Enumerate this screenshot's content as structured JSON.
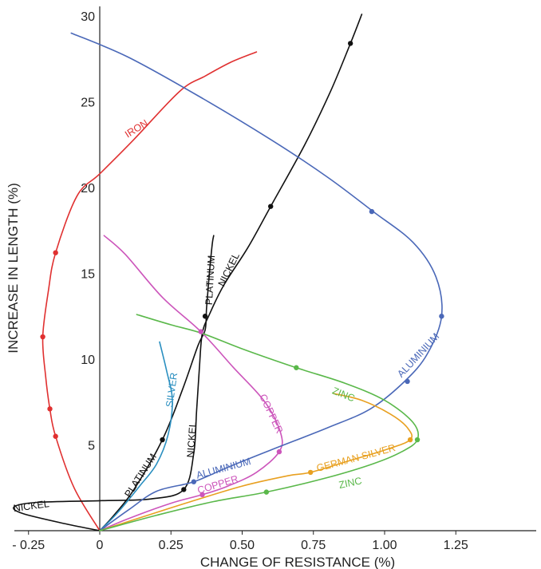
{
  "chart_data": {
    "type": "line",
    "xlabel": "CHANGE OF RESISTANCE (%)",
    "ylabel": "INCREASE IN LENGTH (%)",
    "xlim": [
      -0.27,
      1.25
    ],
    "ylim": [
      0,
      30
    ],
    "x_ticks": [
      {
        "value": -0.25,
        "label": "- 0.25"
      },
      {
        "value": 0,
        "label": "0"
      },
      {
        "value": 0.25,
        "label": "0.25"
      },
      {
        "value": 0.5,
        "label": "0.50"
      },
      {
        "value": 0.75,
        "label": "0.75"
      },
      {
        "value": 1.0,
        "label": "1.00"
      },
      {
        "value": 1.25,
        "label": "1.25"
      }
    ],
    "y_ticks": [
      {
        "value": 5,
        "label": "5"
      },
      {
        "value": 10,
        "label": "10"
      },
      {
        "value": 15,
        "label": "15"
      },
      {
        "value": 20,
        "label": "20"
      },
      {
        "value": 25,
        "label": "25"
      },
      {
        "value": 30,
        "label": "30"
      }
    ],
    "series": [
      {
        "name": "IRON",
        "color": "#e03030",
        "points": [
          [
            0,
            0
          ],
          [
            -0.09,
            2.5
          ],
          [
            -0.155,
            5.5
          ],
          [
            -0.175,
            7.1
          ],
          [
            -0.19,
            9.0
          ],
          [
            -0.2,
            11.3
          ],
          [
            -0.18,
            14.0
          ],
          [
            -0.155,
            16.2
          ],
          [
            -0.08,
            19.5
          ],
          [
            0,
            20.8
          ],
          [
            0.12,
            22.8
          ],
          [
            0.28,
            25.6
          ],
          [
            0.37,
            26.5
          ],
          [
            0.46,
            27.3
          ],
          [
            0.55,
            27.9
          ]
        ],
        "markers": [
          [
            -0.155,
            5.5
          ],
          [
            -0.175,
            7.1
          ],
          [
            -0.2,
            11.3
          ],
          [
            -0.155,
            16.2
          ]
        ]
      },
      {
        "name": "NICKEL",
        "color": "#111111",
        "points": [
          [
            0,
            0
          ],
          [
            -0.12,
            0.4
          ],
          [
            -0.27,
            1.0
          ],
          [
            -0.3,
            1.4
          ],
          [
            -0.22,
            1.65
          ],
          [
            0,
            1.75
          ],
          [
            0.18,
            1.85
          ],
          [
            0.295,
            2.4
          ],
          [
            0.33,
            4.5
          ],
          [
            0.34,
            7.0
          ],
          [
            0.35,
            9.5
          ],
          [
            0.36,
            11.5
          ],
          [
            0.385,
            12.6
          ],
          [
            0.435,
            14.3
          ],
          [
            0.52,
            16.5
          ],
          [
            0.6,
            18.9
          ],
          [
            0.72,
            22.5
          ],
          [
            0.81,
            25.6
          ],
          [
            0.88,
            28.4
          ],
          [
            0.92,
            30.1
          ]
        ],
        "markers": [
          [
            0.295,
            2.4
          ],
          [
            0.37,
            12.5
          ],
          [
            0.6,
            18.9
          ],
          [
            0.88,
            28.4
          ]
        ]
      },
      {
        "name": "PLATINUM",
        "color": "#111111",
        "points": [
          [
            0,
            0
          ],
          [
            0.05,
            0.9
          ],
          [
            0.12,
            2.4
          ],
          [
            0.22,
            5.3
          ],
          [
            0.29,
            8.2
          ],
          [
            0.345,
            10.8
          ],
          [
            0.37,
            11.7
          ],
          [
            0.375,
            13.0
          ],
          [
            0.385,
            15.0
          ],
          [
            0.395,
            16.7
          ],
          [
            0.4,
            17.2
          ]
        ],
        "markers": [
          [
            0.22,
            5.3
          ]
        ]
      },
      {
        "name": "SILVER",
        "color": "#2a8fc0",
        "points": [
          [
            0,
            0
          ],
          [
            0.06,
            1.0
          ],
          [
            0.14,
            2.6
          ],
          [
            0.2,
            3.9
          ],
          [
            0.24,
            5.6
          ],
          [
            0.255,
            7.6
          ],
          [
            0.235,
            9.3
          ],
          [
            0.21,
            11.0
          ]
        ]
      },
      {
        "name": "COPPER",
        "color": "#cc55bb",
        "points": [
          [
            0,
            0
          ],
          [
            0.1,
            0.7
          ],
          [
            0.25,
            1.6
          ],
          [
            0.36,
            2.1
          ],
          [
            0.45,
            2.6
          ],
          [
            0.55,
            3.4
          ],
          [
            0.63,
            4.6
          ],
          [
            0.635,
            5.7
          ],
          [
            0.58,
            7.5
          ],
          [
            0.47,
            9.5
          ],
          [
            0.355,
            11.6
          ],
          [
            0.22,
            13.6
          ],
          [
            0.09,
            16.1
          ],
          [
            0.015,
            17.2
          ]
        ],
        "markers": [
          [
            0.36,
            2.1
          ],
          [
            0.63,
            4.6
          ],
          [
            0.355,
            11.6
          ]
        ]
      },
      {
        "name": "ALUMINIUM",
        "color": "#4a68b8",
        "points": [
          [
            0,
            0
          ],
          [
            0.1,
            1.2
          ],
          [
            0.2,
            2.3
          ],
          [
            0.33,
            2.85
          ],
          [
            0.45,
            3.7
          ],
          [
            0.6,
            4.7
          ],
          [
            0.8,
            6.0
          ],
          [
            0.95,
            7.1
          ],
          [
            1.07,
            8.7
          ],
          [
            1.15,
            10.3
          ],
          [
            1.2,
            12.5
          ],
          [
            1.18,
            14.8
          ],
          [
            1.1,
            16.8
          ],
          [
            0.96,
            18.6
          ],
          [
            0.8,
            20.6
          ],
          [
            0.6,
            22.8
          ],
          [
            0.35,
            25.3
          ],
          [
            0.1,
            27.6
          ],
          [
            -0.1,
            29.0
          ]
        ],
        "markers": [
          [
            0.33,
            2.85
          ],
          [
            1.08,
            8.7
          ],
          [
            1.2,
            12.5
          ],
          [
            0.955,
            18.6
          ]
        ]
      },
      {
        "name": "GERMAN SILVER",
        "color": "#e8a020",
        "points": [
          [
            0,
            0
          ],
          [
            0.15,
            0.8
          ],
          [
            0.32,
            1.7
          ],
          [
            0.5,
            2.6
          ],
          [
            0.66,
            3.2
          ],
          [
            0.74,
            3.4
          ],
          [
            0.88,
            4.1
          ],
          [
            1.0,
            4.7
          ],
          [
            1.09,
            5.3
          ],
          [
            1.08,
            6.0
          ],
          [
            1.02,
            6.8
          ],
          [
            0.92,
            7.6
          ],
          [
            0.82,
            8.0
          ]
        ],
        "markers": [
          [
            0.74,
            3.4
          ],
          [
            1.09,
            5.3
          ]
        ]
      },
      {
        "name": "ZINC",
        "color": "#5ab84a",
        "points": [
          [
            0,
            0
          ],
          [
            0.2,
            0.9
          ],
          [
            0.4,
            1.7
          ],
          [
            0.585,
            2.25
          ],
          [
            0.8,
            3.1
          ],
          [
            0.96,
            3.9
          ],
          [
            1.06,
            4.6
          ],
          [
            1.115,
            5.3
          ],
          [
            1.1,
            6.3
          ],
          [
            1.0,
            7.6
          ],
          [
            0.86,
            8.6
          ],
          [
            0.69,
            9.5
          ],
          [
            0.5,
            10.6
          ],
          [
            0.36,
            11.5
          ],
          [
            0.25,
            12.0
          ],
          [
            0.13,
            12.6
          ]
        ],
        "markers": [
          [
            0.585,
            2.25
          ],
          [
            1.115,
            5.3
          ],
          [
            0.69,
            9.5
          ]
        ]
      }
    ],
    "annotations": [
      {
        "text": "IRON",
        "series": "IRON",
        "x": 0.13,
        "y": 23.4,
        "angle": -32
      },
      {
        "text": "NICKEL",
        "series": "NICKEL",
        "x": -0.24,
        "y": 1.4,
        "angle": -8
      },
      {
        "text": "NICKEL",
        "series": "NICKEL",
        "x": 0.455,
        "y": 15.2,
        "angle": -64
      },
      {
        "text": "NICKEL",
        "series": "NICKEL",
        "x": 0.325,
        "y": 5.3,
        "angle": -86
      },
      {
        "text": "PLATINUM",
        "series": "PLATINUM",
        "x": 0.145,
        "y": 3.2,
        "angle": -57
      },
      {
        "text": "PLATINUM",
        "series": "PLATINUM",
        "x": 0.39,
        "y": 14.6,
        "angle": -87
      },
      {
        "text": "SILVER",
        "series": "SILVER",
        "x": 0.255,
        "y": 8.2,
        "angle": -82
      },
      {
        "text": "COPPER",
        "series": "COPPER",
        "x": 0.6,
        "y": 6.8,
        "angle": 65
      },
      {
        "text": "COPPER",
        "series": "COPPER",
        "x": 0.415,
        "y": 2.65,
        "angle": -17
      },
      {
        "text": "ALUMINIUM",
        "series": "ALUMINIUM",
        "x": 0.435,
        "y": 3.6,
        "angle": -15
      },
      {
        "text": "ALUMINIUM",
        "series": "ALUMINIUM",
        "x": 1.12,
        "y": 10.2,
        "angle": -47
      },
      {
        "text": "GERMAN SILVER",
        "series": "GERMAN SILVER",
        "x": 0.9,
        "y": 4.2,
        "angle": -15
      },
      {
        "text": "ZINC",
        "series": "ZINC",
        "x": 0.88,
        "y": 2.75,
        "angle": -12
      },
      {
        "text": "ZINC",
        "series": "ZINC",
        "x": 0.855,
        "y": 7.9,
        "angle": 22
      }
    ],
    "grid": false,
    "legend": "none"
  }
}
